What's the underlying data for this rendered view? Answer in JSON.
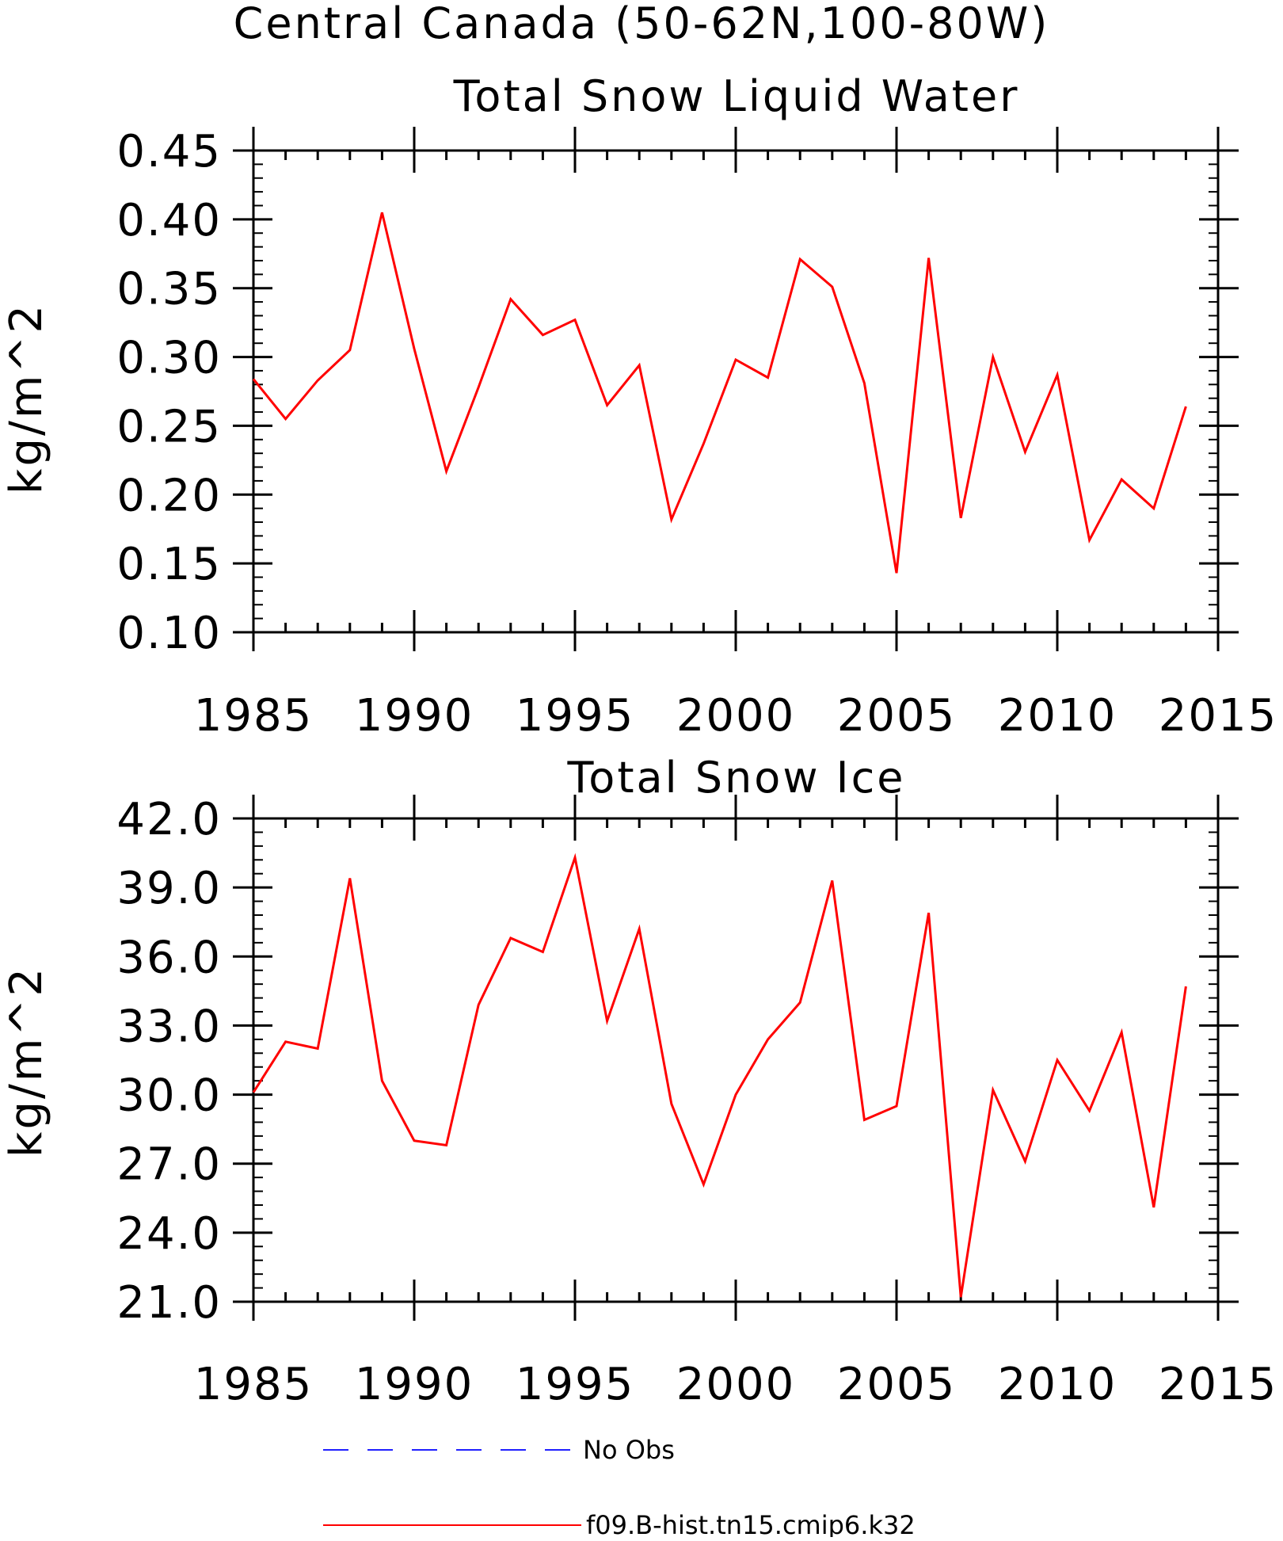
{
  "figure": {
    "title": "Central Canada (50-62N,100-80W)"
  },
  "legend": {
    "items": [
      {
        "label": "No Obs",
        "color": "#2020ff",
        "style": "dashed"
      },
      {
        "label": "f09.B-hist.tn15.cmip6.k32",
        "color": "#ff0000",
        "style": "solid"
      }
    ]
  },
  "chart_data": [
    {
      "type": "line",
      "title": "Total Snow Liquid Water",
      "xlabel": "",
      "ylabel": "kg/m^2",
      "xlim": [
        1985,
        2015
      ],
      "ylim": [
        0.1,
        0.45
      ],
      "xticks": [
        1985,
        1990,
        1995,
        2000,
        2005,
        2010,
        2015
      ],
      "yticks": [
        "0.10",
        "0.15",
        "0.20",
        "0.25",
        "0.30",
        "0.35",
        "0.40",
        "0.45"
      ],
      "grid": false,
      "series": [
        {
          "color": "#ff0000",
          "x": [
            1985,
            1986,
            1987,
            1988,
            1989,
            1990,
            1991,
            1992,
            1993,
            1994,
            1995,
            1996,
            1997,
            1998,
            1999,
            2000,
            2001,
            2002,
            2003,
            2004,
            2005,
            2006,
            2007,
            2008,
            2009,
            2010,
            2011,
            2012,
            2013,
            2014
          ],
          "y": [
            0.284,
            0.255,
            0.283,
            0.305,
            0.405,
            0.306,
            0.217,
            0.278,
            0.342,
            0.316,
            0.327,
            0.265,
            0.294,
            0.182,
            0.237,
            0.298,
            0.285,
            0.371,
            0.351,
            0.281,
            0.143,
            0.372,
            0.183,
            0.3,
            0.231,
            0.287,
            0.167,
            0.211,
            0.19,
            0.264
          ]
        }
      ]
    },
    {
      "type": "line",
      "title": "Total Snow Ice",
      "xlabel": "",
      "ylabel": "kg/m^2",
      "xlim": [
        1985,
        2015
      ],
      "ylim": [
        21.0,
        42.0
      ],
      "xticks": [
        1985,
        1990,
        1995,
        2000,
        2005,
        2010,
        2015
      ],
      "yticks": [
        "21.0",
        "24.0",
        "27.0",
        "30.0",
        "33.0",
        "36.0",
        "39.0",
        "42.0"
      ],
      "grid": false,
      "series": [
        {
          "color": "#ff0000",
          "x": [
            1985,
            1986,
            1987,
            1988,
            1989,
            1990,
            1991,
            1992,
            1993,
            1994,
            1995,
            1996,
            1997,
            1998,
            1999,
            2000,
            2001,
            2002,
            2003,
            2004,
            2005,
            2006,
            2007,
            2008,
            2009,
            2010,
            2011,
            2012,
            2013,
            2014
          ],
          "y": [
            30.1,
            32.3,
            32.0,
            39.4,
            30.6,
            28.0,
            27.8,
            33.9,
            36.8,
            36.2,
            40.3,
            33.2,
            37.2,
            29.6,
            26.1,
            30.0,
            32.4,
            34.0,
            39.3,
            28.9,
            29.5,
            37.9,
            21.2,
            30.2,
            27.1,
            31.5,
            29.3,
            32.7,
            25.1,
            34.7
          ]
        }
      ]
    }
  ]
}
